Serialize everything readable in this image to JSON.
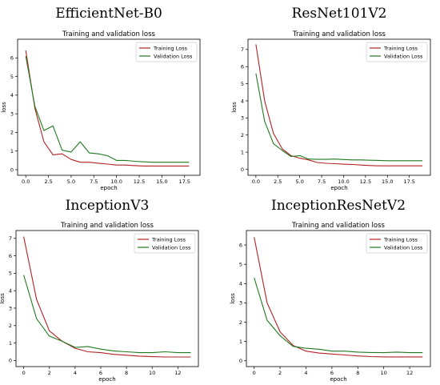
{
  "chart_data": [
    {
      "type": "line",
      "heading": "EfficientNet-B0",
      "title": "Training and validation loss",
      "xlabel": "epoch",
      "ylabel": "loss",
      "xlim": [
        -0.9,
        19.2
      ],
      "ylim": [
        -0.3,
        7.0
      ],
      "xticks": [
        0.0,
        2.5,
        5.0,
        7.5,
        10.0,
        12.5,
        15.0,
        17.5
      ],
      "xtick_labels": [
        "0.0",
        "2.5",
        "5.0",
        "7.5",
        "10.0",
        "12.5",
        "15.0",
        "17.5"
      ],
      "yticks": [
        0,
        1,
        2,
        3,
        4,
        5,
        6
      ],
      "ytick_labels": [
        "0",
        "1",
        "2",
        "3",
        "4",
        "5",
        "6"
      ],
      "legend_position": "top-right",
      "x": [
        0,
        1,
        2,
        3,
        4,
        5,
        6,
        7,
        8,
        9,
        10,
        11,
        12,
        13,
        14,
        15,
        16,
        17,
        18
      ],
      "series": [
        {
          "name": "Training Loss",
          "color": "#b22222",
          "values": [
            6.4,
            3.3,
            1.5,
            0.8,
            0.85,
            0.55,
            0.4,
            0.4,
            0.35,
            0.3,
            0.25,
            0.25,
            0.22,
            0.2,
            0.2,
            0.2,
            0.2,
            0.2,
            0.2
          ]
        },
        {
          "name": "Validation Loss",
          "color": "#1f7a1f",
          "values": [
            6.1,
            3.4,
            2.1,
            2.35,
            1.05,
            0.95,
            1.5,
            0.9,
            0.85,
            0.75,
            0.5,
            0.5,
            0.45,
            0.42,
            0.4,
            0.4,
            0.4,
            0.4,
            0.4
          ]
        }
      ]
    },
    {
      "type": "line",
      "heading": "ResNet101V2",
      "title": "Training and validation loss",
      "xlabel": "epoch",
      "ylabel": "loss",
      "xlim": [
        -0.9,
        19.9
      ],
      "ylim": [
        -0.35,
        7.6
      ],
      "xticks": [
        0.0,
        2.5,
        5.0,
        7.5,
        10.0,
        12.5,
        15.0,
        17.5
      ],
      "xtick_labels": [
        "0.0",
        "2.5",
        "5.0",
        "7.5",
        "10.0",
        "12.5",
        "15.0",
        "17.5"
      ],
      "yticks": [
        0,
        1,
        2,
        3,
        4,
        5,
        6,
        7
      ],
      "ytick_labels": [
        "0",
        "1",
        "2",
        "3",
        "4",
        "5",
        "6",
        "7"
      ],
      "legend_position": "top-right",
      "x": [
        0,
        1,
        2,
        3,
        4,
        5,
        6,
        7,
        8,
        9,
        10,
        11,
        12,
        13,
        14,
        15,
        16,
        17,
        18,
        19
      ],
      "series": [
        {
          "name": "Training Loss",
          "color": "#b22222",
          "values": [
            7.3,
            4.0,
            2.1,
            1.2,
            0.8,
            0.65,
            0.55,
            0.4,
            0.35,
            0.33,
            0.3,
            0.28,
            0.25,
            0.22,
            0.2,
            0.2,
            0.2,
            0.2,
            0.2,
            0.2
          ]
        },
        {
          "name": "Validation Loss",
          "color": "#1f7a1f",
          "values": [
            5.6,
            2.8,
            1.5,
            1.1,
            0.75,
            0.8,
            0.6,
            0.58,
            0.58,
            0.6,
            0.57,
            0.55,
            0.55,
            0.53,
            0.52,
            0.5,
            0.5,
            0.5,
            0.5,
            0.5
          ]
        }
      ]
    },
    {
      "type": "line",
      "heading": "InceptionV3",
      "title": "Training and validation loss",
      "xlabel": "epoch",
      "ylabel": "loss",
      "xlim": [
        -0.6,
        13.6
      ],
      "ylim": [
        -0.35,
        7.45
      ],
      "xticks": [
        0,
        2,
        4,
        6,
        8,
        10,
        12
      ],
      "xtick_labels": [
        "0",
        "2",
        "4",
        "6",
        "8",
        "10",
        "12"
      ],
      "yticks": [
        0,
        1,
        2,
        3,
        4,
        5,
        6,
        7
      ],
      "ytick_labels": [
        "0",
        "1",
        "2",
        "3",
        "4",
        "5",
        "6",
        "7"
      ],
      "legend_position": "top-right",
      "x": [
        0,
        1,
        2,
        3,
        4,
        5,
        6,
        7,
        8,
        9,
        10,
        11,
        12,
        13
      ],
      "series": [
        {
          "name": "Training Loss",
          "color": "#b22222",
          "values": [
            7.1,
            3.5,
            1.7,
            1.1,
            0.7,
            0.5,
            0.45,
            0.35,
            0.3,
            0.25,
            0.22,
            0.2,
            0.2,
            0.2
          ]
        },
        {
          "name": "Validation Loss",
          "color": "#1f7a1f",
          "values": [
            4.9,
            2.4,
            1.4,
            1.1,
            0.75,
            0.8,
            0.65,
            0.55,
            0.5,
            0.45,
            0.45,
            0.5,
            0.45,
            0.45
          ]
        }
      ]
    },
    {
      "type": "line",
      "heading": "InceptionResNetV2",
      "title": "Training and validation loss",
      "xlabel": "epoch",
      "ylabel": "loss",
      "xlim": [
        -0.6,
        13.6
      ],
      "ylim": [
        -0.3,
        6.75
      ],
      "xticks": [
        0,
        2,
        4,
        6,
        8,
        10,
        12
      ],
      "xtick_labels": [
        "0",
        "2",
        "4",
        "6",
        "8",
        "10",
        "12"
      ],
      "yticks": [
        0,
        1,
        2,
        3,
        4,
        5,
        6
      ],
      "ytick_labels": [
        "0",
        "1",
        "2",
        "3",
        "4",
        "5",
        "6"
      ],
      "legend_position": "top-right",
      "x": [
        0,
        1,
        2,
        3,
        4,
        5,
        6,
        7,
        8,
        9,
        10,
        11,
        12,
        13
      ],
      "series": [
        {
          "name": "Training Loss",
          "color": "#b22222",
          "values": [
            6.4,
            3.0,
            1.5,
            0.8,
            0.5,
            0.4,
            0.35,
            0.3,
            0.25,
            0.22,
            0.2,
            0.2,
            0.2,
            0.2
          ]
        },
        {
          "name": "Validation Loss",
          "color": "#1f7a1f",
          "values": [
            4.3,
            2.1,
            1.3,
            0.75,
            0.65,
            0.6,
            0.5,
            0.5,
            0.45,
            0.43,
            0.42,
            0.45,
            0.42,
            0.42
          ]
        }
      ]
    }
  ]
}
